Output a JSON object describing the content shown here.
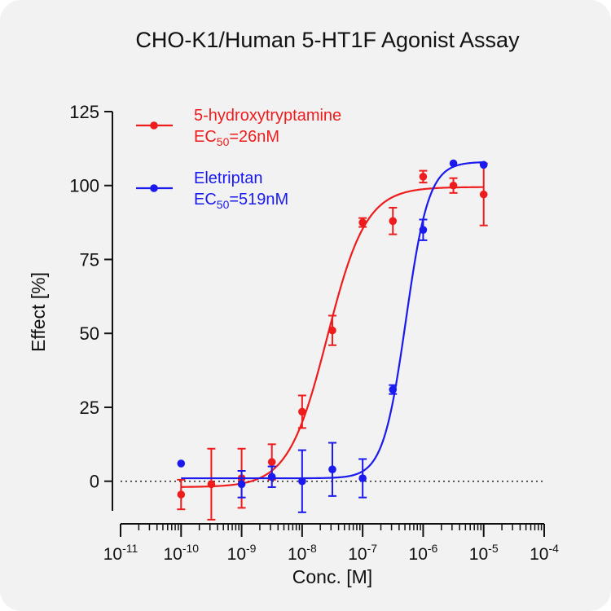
{
  "chart_data": {
    "type": "scatter",
    "title": "CHO-K1/Human 5-HT1F Agonist Assay",
    "xlabel": "Conc. [M]",
    "ylabel": "Effect  [%]",
    "x_scale": "log",
    "xlim": [
      1e-11,
      0.0001
    ],
    "ylim": [
      -10,
      125
    ],
    "x_ticks": [
      {
        "base": "10",
        "exp": "-11"
      },
      {
        "base": "10",
        "exp": "-10"
      },
      {
        "base": "10",
        "exp": "-9"
      },
      {
        "base": "10",
        "exp": "-8"
      },
      {
        "base": "10",
        "exp": "-7"
      },
      {
        "base": "10",
        "exp": "-6"
      },
      {
        "base": "10",
        "exp": "-5"
      },
      {
        "base": "10",
        "exp": "-4"
      }
    ],
    "y_ticks": [
      "0",
      "25",
      "50",
      "75",
      "100",
      "125"
    ],
    "baseline": 0,
    "legend_position": "top-left",
    "series": [
      {
        "name": "5-hydroxytryptamine",
        "ec50_prefix": "EC",
        "ec50_sub": "50",
        "ec50_value": "=26nM",
        "color": "#ee1c1c",
        "x": [
          1e-10,
          3.16e-10,
          1e-09,
          3.16e-09,
          1e-08,
          3.16e-08,
          1e-07,
          3.16e-07,
          1e-06,
          3.16e-06,
          1e-05
        ],
        "y": [
          -4.5,
          -1,
          1,
          6.5,
          23.5,
          51,
          87.5,
          88,
          103,
          100,
          97
        ],
        "err": [
          5,
          12,
          10,
          6,
          5.5,
          5,
          1.5,
          4.5,
          2,
          2.5,
          10.5
        ],
        "fit": {
          "bottom": -2,
          "top": 99.5,
          "ec50": 2.6e-08,
          "hill": 1.35
        }
      },
      {
        "name": "Eletriptan",
        "ec50_prefix": "EC",
        "ec50_sub": "50",
        "ec50_value": "=519nM",
        "color": "#1a1aee",
        "x": [
          1e-10,
          1e-09,
          3.16e-09,
          1e-08,
          3.16e-08,
          1e-07,
          3.16e-07,
          1e-06,
          3.16e-06,
          1e-05
        ],
        "y": [
          6,
          -1,
          1.5,
          0,
          4,
          1,
          31,
          85,
          107.5,
          107
        ],
        "err": [
          0,
          4.5,
          3.5,
          10.5,
          9,
          6.5,
          1.5,
          3.5,
          0,
          0
        ],
        "fit": {
          "bottom": 1,
          "top": 108,
          "ec50": 5.19e-07,
          "hill": 2.3
        }
      }
    ]
  }
}
